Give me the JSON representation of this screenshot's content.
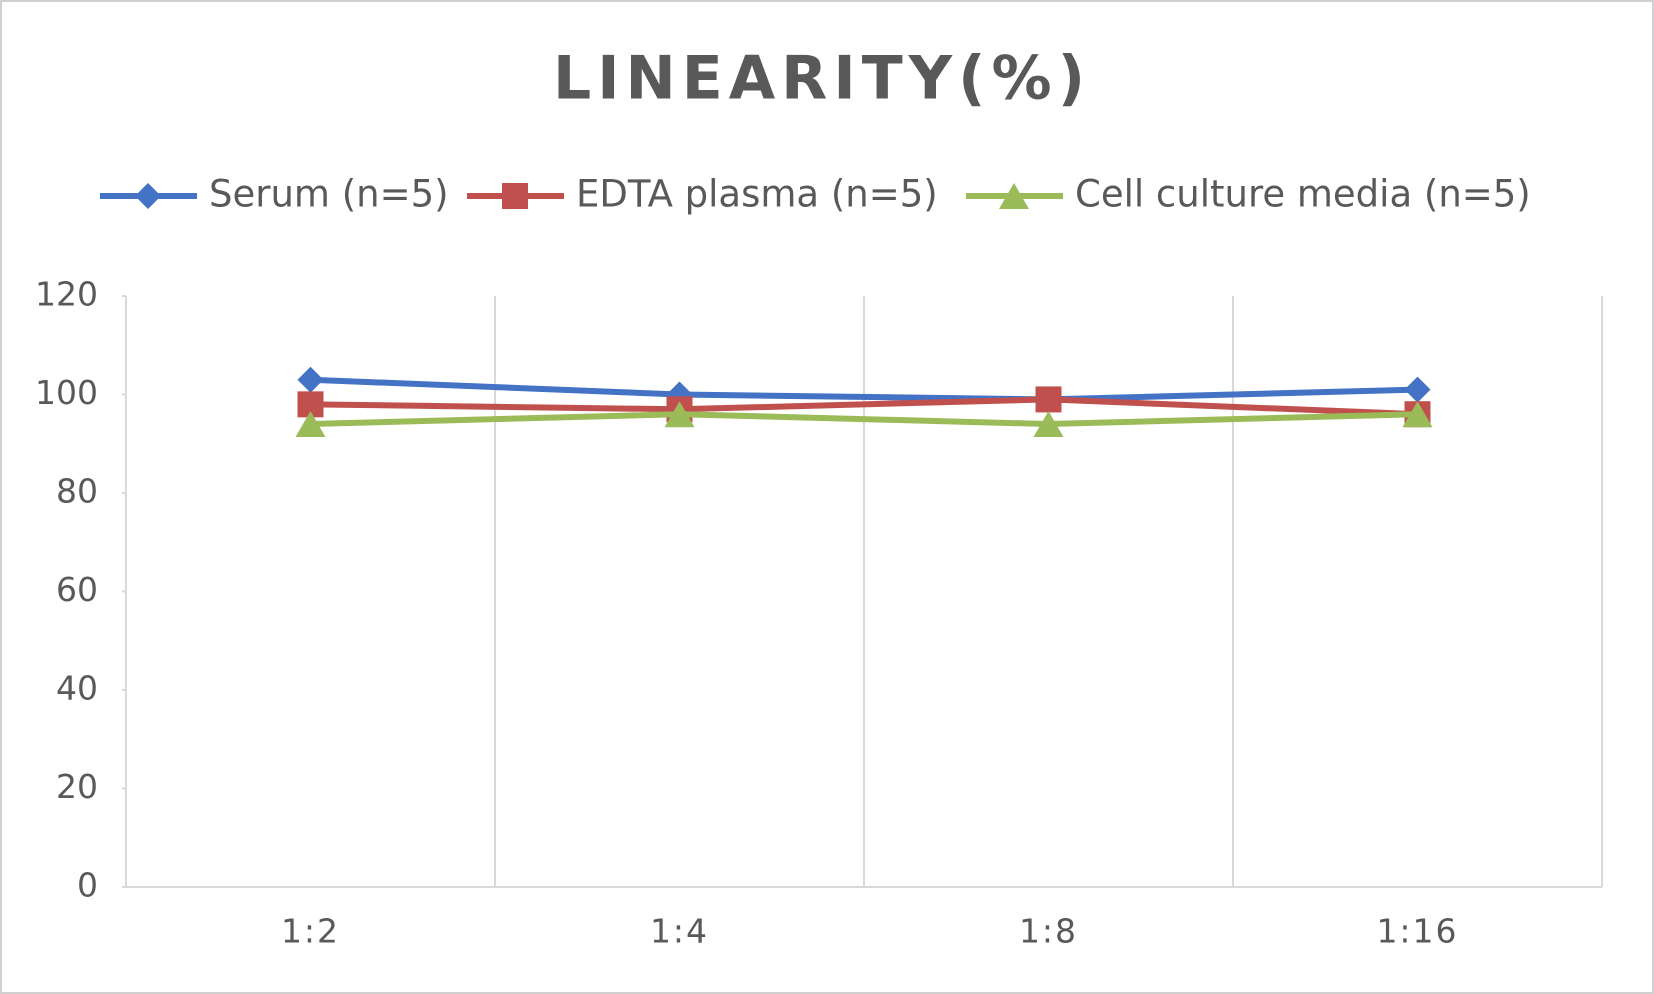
{
  "chart_data": {
    "type": "line",
    "title": "LINEARITY(%)",
    "categories": [
      "1:2",
      "1:4",
      "1:8",
      "1:16"
    ],
    "series": [
      {
        "name": "Serum (n=5)",
        "color": "#4472c4",
        "marker": "diamond",
        "values": [
          103,
          100,
          99,
          101
        ]
      },
      {
        "name": "EDTA plasma (n=5)",
        "color": "#c0504d",
        "marker": "square",
        "values": [
          98,
          97,
          99,
          96
        ]
      },
      {
        "name": "Cell culture media (n=5)",
        "color": "#9bbb59",
        "marker": "triangle",
        "values": [
          94,
          96,
          94,
          96
        ]
      }
    ],
    "ylim": [
      0,
      120
    ],
    "yticks": [
      0,
      20,
      40,
      60,
      80,
      100,
      120
    ],
    "grid": true
  }
}
